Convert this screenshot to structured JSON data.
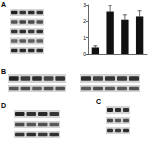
{
  "figure": {
    "panels": [
      "A",
      "B",
      "C",
      "D"
    ]
  },
  "chart_data": {
    "type": "bar",
    "categories": [
      null,
      null,
      null,
      null
    ],
    "values": [
      0.4,
      2.6,
      2.1,
      2.3
    ],
    "errors": [
      0.1,
      0.4,
      0.3,
      0.35
    ],
    "color": "#111111",
    "ylim": [
      0,
      3
    ],
    "yticks": [
      0,
      1,
      2,
      3
    ],
    "grid": false,
    "tick_labels": "y"
  }
}
